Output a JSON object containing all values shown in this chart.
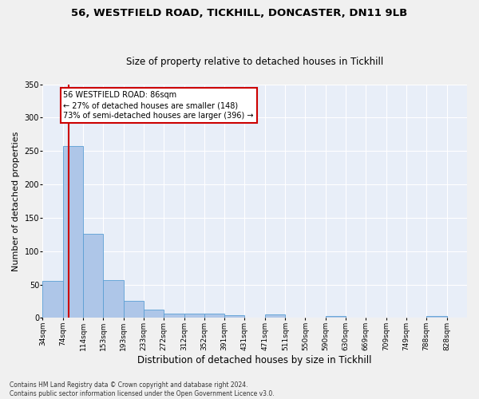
{
  "title_line1": "56, WESTFIELD ROAD, TICKHILL, DONCASTER, DN11 9LB",
  "title_line2": "Size of property relative to detached houses in Tickhill",
  "xlabel": "Distribution of detached houses by size in Tickhill",
  "ylabel": "Number of detached properties",
  "footnote": "Contains HM Land Registry data © Crown copyright and database right 2024.\nContains public sector information licensed under the Open Government Licence v3.0.",
  "bin_labels": [
    "34sqm",
    "74sqm",
    "114sqm",
    "153sqm",
    "193sqm",
    "233sqm",
    "272sqm",
    "312sqm",
    "352sqm",
    "391sqm",
    "431sqm",
    "471sqm",
    "511sqm",
    "550sqm",
    "590sqm",
    "630sqm",
    "669sqm",
    "709sqm",
    "749sqm",
    "788sqm",
    "828sqm"
  ],
  "bar_values": [
    55,
    257,
    126,
    57,
    26,
    12,
    6,
    6,
    6,
    4,
    0,
    5,
    0,
    0,
    3,
    0,
    0,
    0,
    0,
    3,
    0
  ],
  "bar_color": "#aec6e8",
  "bar_edge_color": "#5a9fd4",
  "property_line_x": 86,
  "bin_edges": [
    34,
    74,
    114,
    153,
    193,
    233,
    272,
    312,
    352,
    391,
    431,
    471,
    511,
    550,
    590,
    630,
    669,
    709,
    749,
    788,
    828
  ],
  "annotation_text": "56 WESTFIELD ROAD: 86sqm\n← 27% of detached houses are smaller (148)\n73% of semi-detached houses are larger (396) →",
  "annotation_box_color": "#ffffff",
  "annotation_box_edge_color": "#cc0000",
  "vline_color": "#cc0000",
  "ylim": [
    0,
    350
  ],
  "yticks": [
    0,
    50,
    100,
    150,
    200,
    250,
    300,
    350
  ],
  "background_color": "#e8eef8",
  "fig_background_color": "#f0f0f0",
  "grid_color": "#ffffff",
  "title1_fontsize": 9.5,
  "title2_fontsize": 8.5,
  "ylabel_fontsize": 8,
  "xlabel_fontsize": 8.5,
  "tick_fontsize": 6.5,
  "footnote_fontsize": 5.5
}
